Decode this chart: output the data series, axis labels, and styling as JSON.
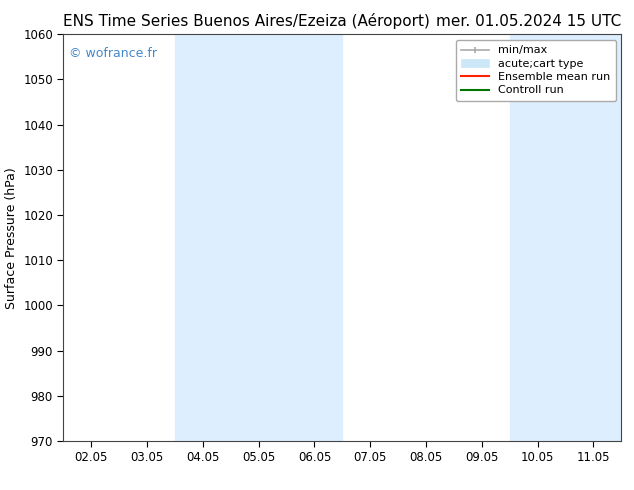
{
  "title_left": "ENS Time Series Buenos Aires/Ezeiza (Aéroport)",
  "title_right": "mer. 01.05.2024 15 UTC",
  "ylabel": "Surface Pressure (hPa)",
  "ylim": [
    970,
    1060
  ],
  "yticks": [
    970,
    980,
    990,
    1000,
    1010,
    1020,
    1030,
    1040,
    1050,
    1060
  ],
  "xtick_labels": [
    "02.05",
    "03.05",
    "04.05",
    "05.05",
    "06.05",
    "07.05",
    "08.05",
    "09.05",
    "10.05",
    "11.05"
  ],
  "num_xticks": 10,
  "xlim_days": [
    1.5,
    10.5
  ],
  "shaded_regions": [
    {
      "xmin": 3.5,
      "xmax": 5.5
    },
    {
      "xmin": 9.5,
      "xmax": 10.5
    }
  ],
  "shade_color": "#ddeeff",
  "watermark": "© wofrance.fr",
  "watermark_color": "#4488cc",
  "background_color": "#ffffff",
  "title_fontsize": 11,
  "tick_label_fontsize": 8.5,
  "ylabel_fontsize": 9,
  "legend_fontsize": 8
}
